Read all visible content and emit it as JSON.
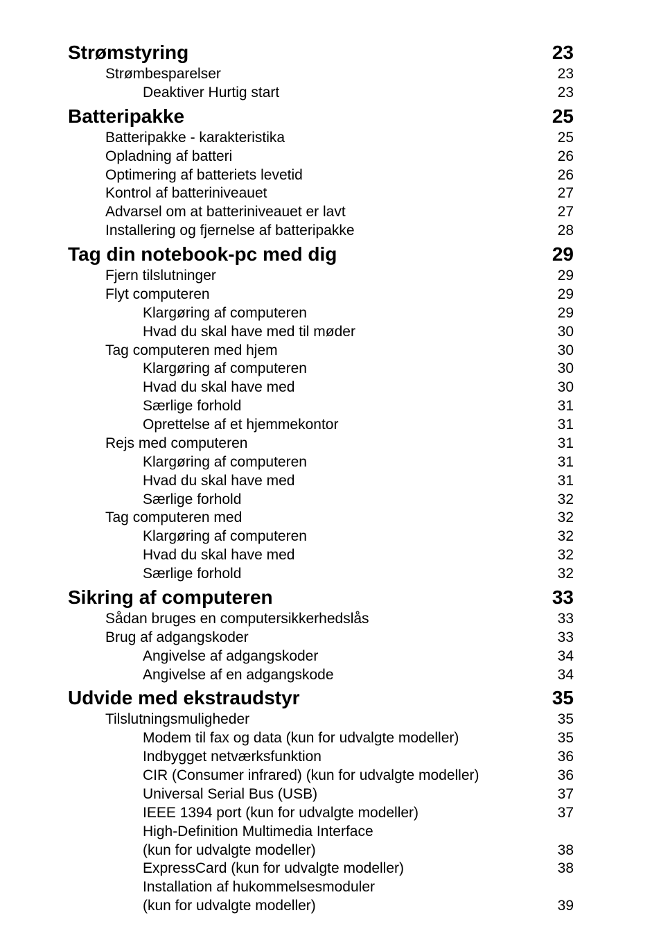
{
  "toc": [
    {
      "level": 1,
      "label": "Strømstyring",
      "page": "23"
    },
    {
      "level": 2,
      "label": "Strømbesparelser",
      "page": "23"
    },
    {
      "level": 3,
      "label": "Deaktiver Hurtig start",
      "page": "23"
    },
    {
      "level": 1,
      "label": "Batteripakke",
      "page": "25"
    },
    {
      "level": 2,
      "label": "Batteripakke - karakteristika",
      "page": "25"
    },
    {
      "level": 2,
      "label": "Opladning af batteri",
      "page": "26"
    },
    {
      "level": 2,
      "label": "Optimering af batteriets levetid",
      "page": "26"
    },
    {
      "level": 2,
      "label": "Kontrol af batteriniveauet",
      "page": "27"
    },
    {
      "level": 2,
      "label": "Advarsel om at batteriniveauet er lavt",
      "page": "27"
    },
    {
      "level": 2,
      "label": "Installering og fjernelse af batteripakke",
      "page": "28"
    },
    {
      "level": 1,
      "label": "Tag din notebook-pc med dig",
      "page": "29"
    },
    {
      "level": 2,
      "label": "Fjern tilslutninger",
      "page": "29"
    },
    {
      "level": 2,
      "label": "Flyt computeren",
      "page": "29"
    },
    {
      "level": 3,
      "label": "Klargøring af computeren",
      "page": "29"
    },
    {
      "level": 3,
      "label": "Hvad du skal have med til møder",
      "page": "30"
    },
    {
      "level": 2,
      "label": "Tag computeren med hjem",
      "page": "30"
    },
    {
      "level": 3,
      "label": "Klargøring af computeren",
      "page": "30"
    },
    {
      "level": 3,
      "label": "Hvad du skal have med",
      "page": "30"
    },
    {
      "level": 3,
      "label": "Særlige forhold",
      "page": "31"
    },
    {
      "level": 3,
      "label": "Oprettelse af et hjemmekontor",
      "page": "31"
    },
    {
      "level": 2,
      "label": "Rejs med computeren",
      "page": "31"
    },
    {
      "level": 3,
      "label": "Klargøring af computeren",
      "page": "31"
    },
    {
      "level": 3,
      "label": "Hvad du skal have med",
      "page": "31"
    },
    {
      "level": 3,
      "label": "Særlige forhold",
      "page": "32"
    },
    {
      "level": 2,
      "label": "Tag computeren med",
      "page": "32"
    },
    {
      "level": 3,
      "label": "Klargøring af computeren",
      "page": "32"
    },
    {
      "level": 3,
      "label": "Hvad du skal have med",
      "page": "32"
    },
    {
      "level": 3,
      "label": "Særlige forhold",
      "page": "32"
    },
    {
      "level": 1,
      "label": "Sikring af computeren",
      "page": "33"
    },
    {
      "level": 2,
      "label": "Sådan bruges en computersikkerhedslås",
      "page": "33"
    },
    {
      "level": 2,
      "label": "Brug af adgangskoder",
      "page": "33"
    },
    {
      "level": 3,
      "label": "Angivelse af adgangskoder",
      "page": "34"
    },
    {
      "level": 3,
      "label": "Angivelse af en adgangskode",
      "page": "34"
    },
    {
      "level": 1,
      "label": "Udvide med ekstraudstyr",
      "page": "35"
    },
    {
      "level": 2,
      "label": "Tilslutningsmuligheder",
      "page": "35"
    },
    {
      "level": 3,
      "label": "Modem til fax og data (kun for udvalgte modeller)",
      "page": "35"
    },
    {
      "level": 3,
      "label": "Indbygget netværksfunktion",
      "page": "36"
    },
    {
      "level": 3,
      "label": "CIR (Consumer infrared) (kun for udvalgte modeller)",
      "page": "36"
    },
    {
      "level": 3,
      "label": "Universal Serial Bus (USB)",
      "page": "37"
    },
    {
      "level": 3,
      "label": "IEEE 1394 port (kun for udvalgte modeller)",
      "page": "37"
    },
    {
      "level": 3,
      "label": "High-Definition Multimedia Interface",
      "page": ""
    },
    {
      "level": 3,
      "label": "(kun for udvalgte modeller)",
      "page": "38"
    },
    {
      "level": 3,
      "label": "ExpressCard (kun for udvalgte modeller)",
      "page": "38"
    },
    {
      "level": 3,
      "label": "Installation af hukommelsesmoduler",
      "page": ""
    },
    {
      "level": 3,
      "label": "(kun for udvalgte modeller)",
      "page": "39"
    }
  ]
}
